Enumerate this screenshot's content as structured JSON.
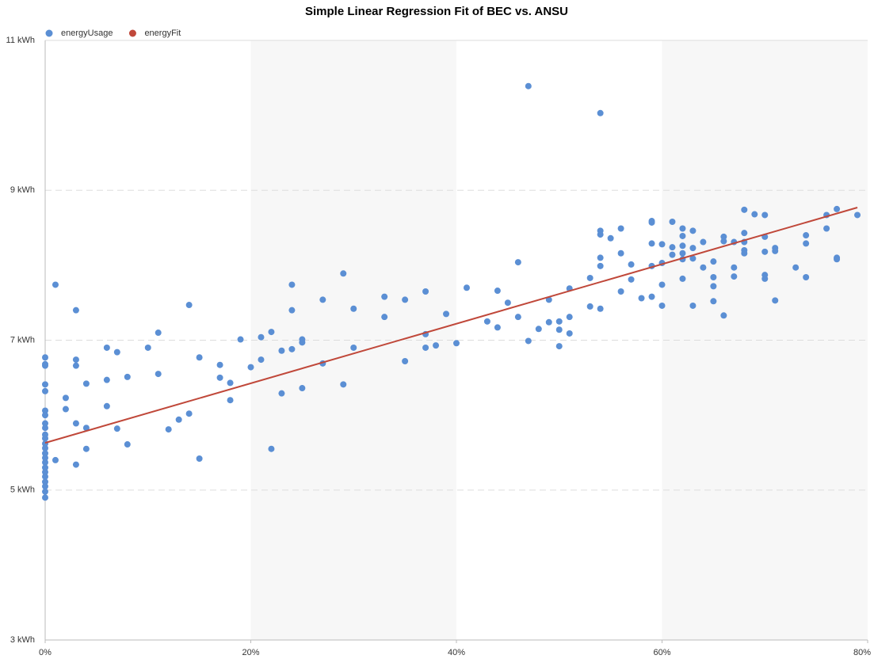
{
  "chart_data": {
    "type": "scatter",
    "title": "Simple Linear Regression Fit of BEC vs. ANSU",
    "xlim": [
      0,
      80
    ],
    "xticks": [
      {
        "value": 0,
        "label": "0%"
      },
      {
        "value": 20,
        "label": "20%"
      },
      {
        "value": 40,
        "label": "40%"
      },
      {
        "value": 60,
        "label": "60%"
      },
      {
        "value": 80,
        "label": "80%"
      }
    ],
    "ylim": [
      3,
      11
    ],
    "yticks": [
      {
        "value": 3,
        "label": "3 kWh"
      },
      {
        "value": 5,
        "label": "5 kWh"
      },
      {
        "value": 7,
        "label": "7 kWh"
      },
      {
        "value": 9,
        "label": "9 kWh"
      },
      {
        "value": 11,
        "label": "11 kWh"
      }
    ],
    "grid": true,
    "legend": "top-left",
    "series": [
      {
        "name": "energyUsage",
        "color": "#5b8fd4",
        "type": "scatter",
        "x": [
          0,
          0,
          0,
          0,
          0,
          0,
          0,
          0,
          0,
          0,
          0,
          0,
          0,
          0,
          0,
          0,
          0,
          0,
          0,
          0,
          0,
          0,
          0,
          1,
          1,
          2,
          2,
          3,
          3,
          3,
          3,
          3,
          4,
          4,
          4,
          6,
          6,
          6,
          7,
          7,
          8,
          8,
          10,
          11,
          11,
          12,
          13,
          14,
          14,
          15,
          15,
          17,
          17,
          18,
          18,
          19,
          20,
          21,
          21,
          22,
          22,
          23,
          23,
          24,
          24,
          24,
          25,
          25,
          25,
          27,
          27,
          29,
          29,
          30,
          30,
          33,
          33,
          35,
          35,
          37,
          37,
          37,
          38,
          39,
          40,
          41,
          43,
          44,
          44,
          45,
          46,
          46,
          47,
          47,
          48,
          49,
          49,
          50,
          50,
          50,
          51,
          51,
          51,
          53,
          53,
          54,
          54,
          54,
          54,
          54,
          54,
          55,
          56,
          56,
          56,
          57,
          57,
          58,
          59,
          59,
          59,
          59,
          59,
          60,
          60,
          60,
          60,
          61,
          61,
          61,
          62,
          62,
          62,
          62,
          62,
          62,
          63,
          63,
          63,
          63,
          64,
          64,
          65,
          65,
          65,
          65,
          66,
          66,
          66,
          67,
          67,
          67,
          68,
          68,
          68,
          68,
          68,
          69,
          70,
          70,
          70,
          70,
          70,
          71,
          71,
          71,
          73,
          74,
          74,
          74,
          76,
          76,
          77,
          77,
          77,
          79
        ],
        "values": [
          6.77,
          6.68,
          6.66,
          6.41,
          6.32,
          6.06,
          6.0,
          5.89,
          5.83,
          5.74,
          5.69,
          5.62,
          5.56,
          5.49,
          5.43,
          5.37,
          5.3,
          5.24,
          5.18,
          5.11,
          5.05,
          4.98,
          4.9,
          7.74,
          5.4,
          6.23,
          6.08,
          7.4,
          6.74,
          6.66,
          5.89,
          5.34,
          6.42,
          5.83,
          5.55,
          6.9,
          6.47,
          6.12,
          6.84,
          5.82,
          6.51,
          5.61,
          6.9,
          7.1,
          6.55,
          5.81,
          5.94,
          7.47,
          6.02,
          6.77,
          5.42,
          6.67,
          6.5,
          6.43,
          6.2,
          7.01,
          6.64,
          7.04,
          6.74,
          7.11,
          5.55,
          6.86,
          6.29,
          7.74,
          7.4,
          6.88,
          7.01,
          6.97,
          6.36,
          7.54,
          6.69,
          7.89,
          6.41,
          7.42,
          6.9,
          7.58,
          7.31,
          7.54,
          6.72,
          7.65,
          7.08,
          6.9,
          6.93,
          7.35,
          6.96,
          7.7,
          7.25,
          7.66,
          7.17,
          7.5,
          8.04,
          7.31,
          10.39,
          6.99,
          7.15,
          7.54,
          7.24,
          7.25,
          7.14,
          6.92,
          7.69,
          7.31,
          7.09,
          7.83,
          7.45,
          10.03,
          8.46,
          8.41,
          8.1,
          7.99,
          7.42,
          8.36,
          8.49,
          8.16,
          7.65,
          8.01,
          7.81,
          7.56,
          8.59,
          8.57,
          8.29,
          7.99,
          7.58,
          8.28,
          8.03,
          7.74,
          7.46,
          8.58,
          8.24,
          8.14,
          8.49,
          8.39,
          8.26,
          8.16,
          8.08,
          7.82,
          8.46,
          8.23,
          8.09,
          7.46,
          8.31,
          7.97,
          8.05,
          7.84,
          7.72,
          7.52,
          8.38,
          8.32,
          7.33,
          8.31,
          7.97,
          7.85,
          8.74,
          8.43,
          8.31,
          8.2,
          8.16,
          8.68,
          8.67,
          8.38,
          8.18,
          7.87,
          7.82,
          8.23,
          8.19,
          7.53,
          7.97,
          8.4,
          8.29,
          7.84,
          8.67,
          8.49,
          8.75,
          8.1,
          8.08,
          8.67
        ]
      },
      {
        "name": "energyFit",
        "color": "#c0483a",
        "type": "line",
        "x": [
          0,
          79
        ],
        "values": [
          5.63,
          8.77
        ]
      }
    ]
  }
}
